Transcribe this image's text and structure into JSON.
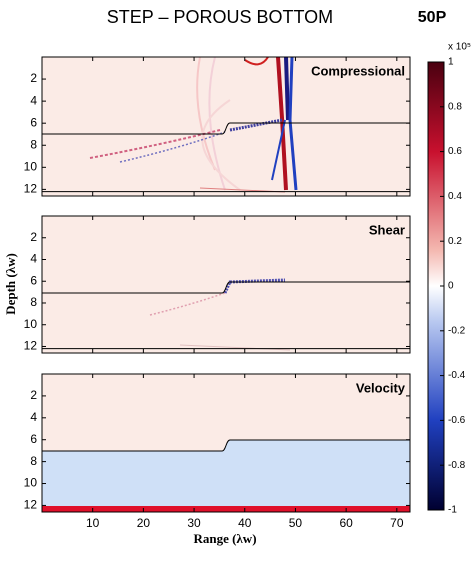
{
  "chart_data": {
    "type": "heatmap",
    "title": "STEP – POROUS BOTTOM",
    "tag": "50P",
    "x_label": "Range (λw)",
    "y_label": "Depth (λw)",
    "xlim": [
      0,
      72.6
    ],
    "xticks": [
      10,
      20,
      30,
      40,
      50,
      60,
      70
    ],
    "ylim": [
      12.6,
      0
    ],
    "yticks": [
      2,
      4,
      6,
      8,
      10,
      12
    ],
    "panels": [
      {
        "title": "Compressional"
      },
      {
        "title": "Shear"
      },
      {
        "title": "Velocity"
      }
    ],
    "colorbar": {
      "scale_label": "x 10⁵",
      "lim": [
        -1,
        1
      ],
      "ticks": [
        1,
        0.8,
        0.6,
        0.4,
        0.2,
        0,
        -0.2,
        -0.4,
        -0.6,
        -0.8,
        -1
      ]
    }
  }
}
